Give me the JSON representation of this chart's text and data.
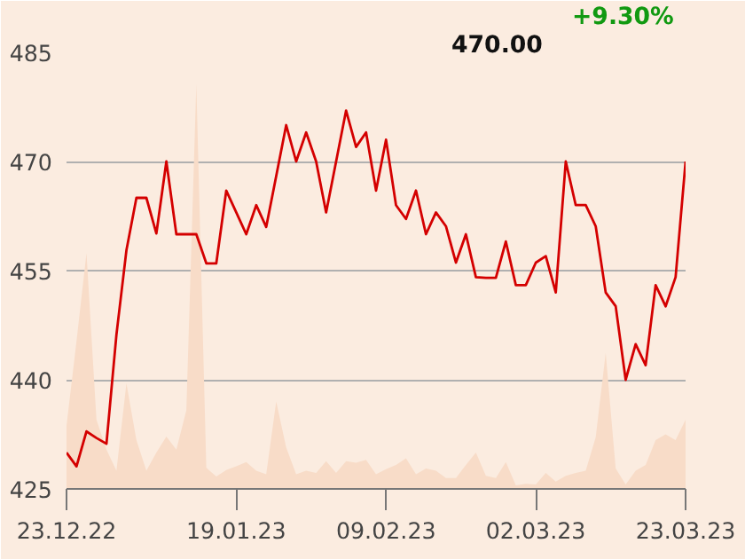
{
  "chart_data": {
    "type": "line",
    "annotations": [
      "470.00",
      "+9.30%"
    ],
    "categories": [
      "23.12.22",
      null,
      null,
      null,
      null,
      null,
      null,
      null,
      null,
      null,
      null,
      null,
      null,
      null,
      null,
      null,
      null,
      "19.01.23",
      null,
      null,
      null,
      null,
      null,
      null,
      null,
      null,
      null,
      null,
      null,
      null,
      null,
      null,
      "09.02.23",
      null,
      null,
      null,
      null,
      null,
      null,
      null,
      null,
      null,
      null,
      null,
      null,
      null,
      null,
      "02.03.23",
      null,
      null,
      null,
      null,
      null,
      null,
      null,
      null,
      null,
      null,
      null,
      null,
      null,
      null,
      "23.03.23"
    ],
    "series": [
      {
        "type": "area",
        "color": "#f8dcc8",
        "values": [
          433.7,
          445.3,
          457.4,
          434.5,
          430.4,
          427.5,
          439.5,
          431.7,
          427.5,
          430,
          432.2,
          430.4,
          435.8,
          480.6,
          427.9,
          426.7,
          427.6,
          428.1,
          428.7,
          427.5,
          427,
          437,
          430.7,
          427,
          427.5,
          427.2,
          428.8,
          427.2,
          428.8,
          428.6,
          429,
          427,
          427.7,
          428.3,
          429.2,
          427,
          427.8,
          427.5,
          426.5,
          426.5,
          428.3,
          430,
          426.8,
          426.5,
          428.7,
          425.5,
          425.7,
          425.6,
          427.2,
          426,
          426.8,
          427.2,
          427.5,
          432.1,
          443.7,
          427.8,
          425.6,
          427.5,
          428.3,
          431.7,
          432.5,
          431.7,
          434.5
        ]
      },
      {
        "color": "#d40000",
        "values": [
          430,
          428.1,
          432.9,
          432,
          431.2,
          446.2,
          457.8,
          465,
          465,
          460.1,
          470,
          460,
          460,
          460,
          456,
          456,
          466,
          463,
          460,
          464,
          461,
          468,
          475,
          470,
          474,
          470,
          463,
          470,
          477,
          472,
          474,
          466,
          473,
          464,
          462.1,
          466,
          460,
          463,
          461.1,
          456.1,
          460,
          454.1,
          454,
          454,
          459,
          453,
          453,
          456.1,
          457,
          452,
          470,
          464,
          464,
          461.1,
          452,
          450.1,
          440,
          444.9,
          442,
          453,
          450.1,
          454.1,
          470
        ]
      }
    ],
    "ylim": [
      425,
      485
    ],
    "yticks": [
      425,
      440,
      455,
      470,
      485
    ],
    "grid": "y"
  }
}
